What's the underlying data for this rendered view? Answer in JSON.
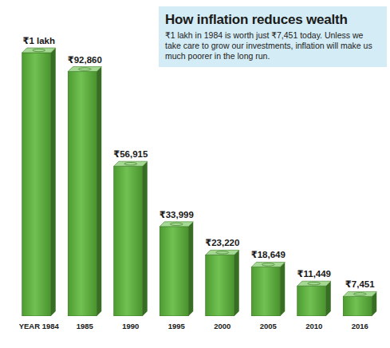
{
  "chart_data": {
    "type": "bar",
    "title": "How inflation reduces wealth",
    "subtitle": "₹1 lakh in 1984 is worth just ₹7,451 today. Unless we take care to grow our investments, inflation will make us much poorer in the long run.",
    "categories": [
      "YEAR 1984",
      "1985",
      "1990",
      "1995",
      "2000",
      "2005",
      "2010",
      "2016"
    ],
    "values": [
      100000,
      92860,
      56915,
      33999,
      23220,
      18649,
      11449,
      7451
    ],
    "value_labels": [
      "₹1 lakh",
      "₹92,860",
      "₹56,915",
      "₹33,999",
      "₹23,220",
      "₹18,649",
      "₹11,449",
      "₹7,451"
    ],
    "color": "#5cb83a",
    "ylim": [
      0,
      100000
    ],
    "data_labels": true,
    "tick_labels": "x",
    "grid": false
  }
}
